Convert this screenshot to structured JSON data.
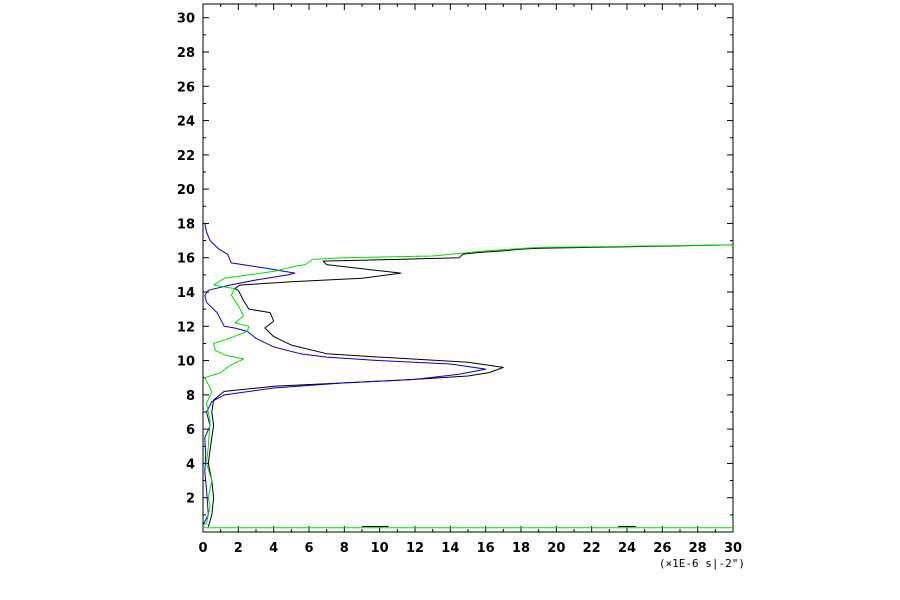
{
  "chart_data": {
    "type": "line",
    "title": "",
    "xlabel": "",
    "ylabel": "",
    "x_unit_label": "(×1E-6 s|-2\")",
    "xlim": [
      0,
      30
    ],
    "ylim": [
      0,
      30.8
    ],
    "x_ticks": [
      0,
      2,
      4,
      6,
      8,
      10,
      12,
      14,
      16,
      18,
      20,
      22,
      24,
      26,
      28,
      30
    ],
    "y_ticks": [
      2,
      4,
      6,
      8,
      10,
      12,
      14,
      16,
      18,
      20,
      22,
      24,
      26,
      28,
      30
    ],
    "grid": false,
    "legend": "none",
    "series": [
      {
        "color": "#000000",
        "points": [
          [
            0.3,
            0.3
          ],
          [
            0.5,
            1.0
          ],
          [
            0.6,
            2.0
          ],
          [
            0.5,
            3.0
          ],
          [
            0.3,
            4.0
          ],
          [
            0.4,
            4.8
          ],
          [
            0.5,
            5.5
          ],
          [
            0.6,
            6.2
          ],
          [
            0.5,
            7.0
          ],
          [
            0.6,
            7.7
          ],
          [
            1.2,
            8.2
          ],
          [
            4,
            8.5
          ],
          [
            8,
            8.7
          ],
          [
            12,
            8.9
          ],
          [
            15,
            9.1
          ],
          [
            16.2,
            9.3
          ],
          [
            17,
            9.6
          ],
          [
            15,
            9.9
          ],
          [
            10,
            10.2
          ],
          [
            7,
            10.4
          ],
          [
            5,
            10.9
          ],
          [
            4,
            11.4
          ],
          [
            3.5,
            11.9
          ],
          [
            4,
            12.3
          ],
          [
            3.8,
            12.8
          ],
          [
            2.6,
            13.0
          ],
          [
            2.3,
            13.5
          ],
          [
            2,
            14.1
          ],
          [
            1.8,
            14.2
          ],
          [
            2.1,
            14.4
          ],
          [
            5,
            14.6
          ],
          [
            9,
            14.8
          ],
          [
            11.2,
            15.1
          ],
          [
            9.5,
            15.3
          ],
          [
            7,
            15.6
          ],
          [
            6.8,
            15.8
          ],
          [
            11,
            15.9
          ],
          [
            14.5,
            16.0
          ],
          [
            14.7,
            16.2
          ],
          [
            15.5,
            16.3
          ],
          [
            17,
            16.4
          ],
          [
            18,
            16.5
          ],
          [
            19,
            16.55
          ],
          [
            30,
            16.75
          ]
        ]
      },
      {
        "color": "#0000cc",
        "points": [
          [
            0,
            0.4
          ],
          [
            0.3,
            1.0
          ],
          [
            0.2,
            2.5
          ],
          [
            0.1,
            3.5
          ],
          [
            0.15,
            4.5
          ],
          [
            0.1,
            5.5
          ],
          [
            0.4,
            6.2
          ],
          [
            0.2,
            7.0
          ],
          [
            0.5,
            7.6
          ],
          [
            1.2,
            8.0
          ],
          [
            4,
            8.4
          ],
          [
            8,
            8.7
          ],
          [
            12,
            8.9
          ],
          [
            14.5,
            9.2
          ],
          [
            16,
            9.5
          ],
          [
            14,
            9.8
          ],
          [
            10,
            10.0
          ],
          [
            7,
            10.2
          ],
          [
            5.5,
            10.4
          ],
          [
            4,
            10.8
          ],
          [
            3,
            11.3
          ],
          [
            2.5,
            11.7
          ],
          [
            1.8,
            11.9
          ],
          [
            1.2,
            12.0
          ],
          [
            0.8,
            12.8
          ],
          [
            0.2,
            13.4
          ],
          [
            0.1,
            13.8
          ],
          [
            0.3,
            14.1
          ],
          [
            1.5,
            14.4
          ],
          [
            3,
            14.7
          ],
          [
            4.8,
            15.0
          ],
          [
            5.2,
            15.1
          ],
          [
            3.5,
            15.4
          ],
          [
            1.6,
            15.7
          ],
          [
            1.4,
            16.2
          ],
          [
            0.9,
            16.5
          ],
          [
            0.4,
            17.0
          ],
          [
            0.2,
            17.5
          ],
          [
            0.1,
            18.0
          ]
        ]
      },
      {
        "color": "#00dd00",
        "points": [
          [
            0,
            0.4
          ],
          [
            0.2,
            0.5
          ],
          [
            0.4,
            1.5
          ],
          [
            0.3,
            2.0
          ],
          [
            0.5,
            3.0
          ],
          [
            0.2,
            4.0
          ],
          [
            0.3,
            5.0
          ],
          [
            0.4,
            6.5
          ],
          [
            0.2,
            7.5
          ],
          [
            0.5,
            8.2
          ],
          [
            0.1,
            9.0
          ],
          [
            1,
            9.3
          ],
          [
            1.5,
            9.7
          ],
          [
            2.3,
            10.1
          ],
          [
            1.3,
            10.3
          ],
          [
            0.7,
            10.6
          ],
          [
            0.6,
            11.0
          ],
          [
            1.5,
            11.3
          ],
          [
            2.5,
            11.7
          ],
          [
            2.6,
            12.0
          ],
          [
            1.8,
            12.2
          ],
          [
            2.3,
            12.6
          ],
          [
            2.0,
            13.2
          ],
          [
            1.6,
            13.8
          ],
          [
            1.8,
            14.2
          ],
          [
            0.6,
            14.4
          ],
          [
            1.2,
            14.8
          ],
          [
            4,
            15.2
          ],
          [
            5.2,
            15.5
          ],
          [
            5.8,
            15.6
          ],
          [
            6.2,
            15.9
          ],
          [
            8,
            16.0
          ],
          [
            13,
            16.1
          ],
          [
            16,
            16.4
          ],
          [
            19,
            16.6
          ],
          [
            23,
            16.65
          ],
          [
            26,
            16.7
          ],
          [
            30,
            16.75
          ]
        ]
      },
      {
        "color": "#00dd00",
        "points": [
          [
            0,
            0.25
          ],
          [
            30,
            0.25
          ]
        ]
      },
      {
        "color": "#000000",
        "points": [
          [
            9,
            0.32
          ],
          [
            10.5,
            0.32
          ]
        ]
      },
      {
        "color": "#000000",
        "points": [
          [
            23.5,
            0.32
          ],
          [
            24.5,
            0.32
          ]
        ]
      }
    ]
  }
}
